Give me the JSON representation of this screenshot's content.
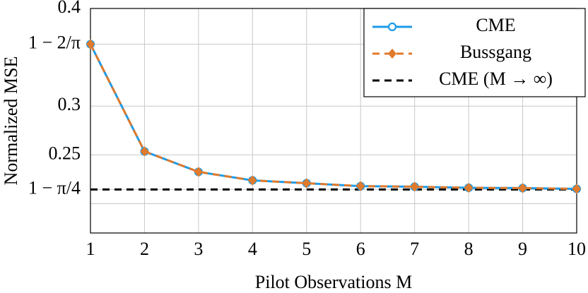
{
  "chart_data": {
    "type": "line",
    "x_label": "Pilot Observations M",
    "y_label": "Normalized MSE",
    "x": [
      1,
      2,
      3,
      4,
      5,
      6,
      7,
      8,
      9,
      10
    ],
    "xlim": [
      1,
      10
    ],
    "xticks": [
      1,
      2,
      3,
      4,
      5,
      6,
      7,
      8,
      9,
      10
    ],
    "ylim": [
      0.17,
      0.4
    ],
    "yticks": [
      0.4,
      {
        "value": 0.3634,
        "label": "1 − 2/π"
      },
      0.3,
      0.25,
      {
        "value": 0.2146,
        "label": "1 − π/4"
      }
    ],
    "ygrid": [
      0.2
    ],
    "grid": true,
    "legend": "upper right",
    "series": [
      {
        "name": "CME",
        "color": "#1e9be8",
        "marker": "circle",
        "dash": "solid",
        "values": [
          0.3634,
          0.2536,
          0.2326,
          0.2239,
          0.221,
          0.218,
          0.2174,
          0.2163,
          0.216,
          0.2152
        ]
      },
      {
        "name": "Bussgang",
        "color": "#e07a2c",
        "marker": "diamond",
        "dash": "dashed",
        "values": [
          0.3634,
          0.2536,
          0.2326,
          0.2239,
          0.221,
          0.218,
          0.2174,
          0.2163,
          0.216,
          0.2152
        ]
      }
    ],
    "hline": {
      "name": "CME (M → ∞)",
      "value": 0.2146,
      "color": "#000000",
      "dash": "dashed"
    }
  }
}
